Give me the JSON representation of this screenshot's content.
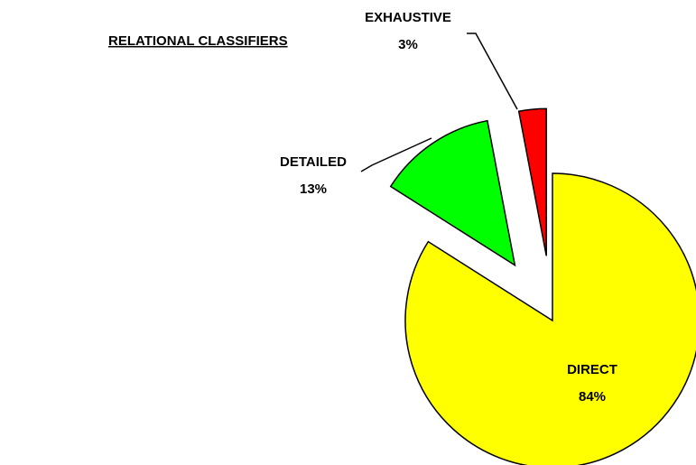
{
  "chart_data": {
    "type": "pie",
    "title": "RELATIONAL CLASSIFIERS",
    "categories": [
      "DIRECT",
      "DETAILED",
      "EXHAUSTIVE"
    ],
    "values": [
      84,
      13,
      3
    ],
    "value_labels": [
      "84%",
      "13%",
      "3%"
    ],
    "colors": [
      "#ffff00",
      "#00ff00",
      "#ff0000"
    ]
  }
}
